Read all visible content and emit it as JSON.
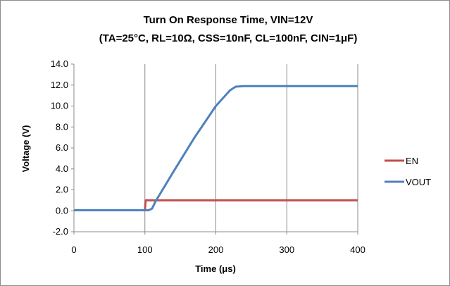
{
  "chart_data": {
    "type": "line",
    "title_line1": "Turn On Response Time, VIN=12V",
    "title_line2": "(TA=25°C, RL=10Ω, CSS=10nF, CL=100nF, CIN=1μF)",
    "xlabel": "Time (μs)",
    "ylabel": "Voltage (V)",
    "xlim": [
      0,
      400
    ],
    "ylim": [
      -2,
      14
    ],
    "x_ticks": [
      0,
      100,
      200,
      300,
      400
    ],
    "y_ticks": [
      -2,
      0,
      2,
      4,
      6,
      8,
      10,
      12,
      14
    ],
    "y_tick_labels": [
      "-2.0",
      "0.0",
      "2.0",
      "4.0",
      "6.0",
      "8.0",
      "10.0",
      "12.0",
      "14.0"
    ],
    "grid": "vertical",
    "legend_position": "right",
    "series": [
      {
        "name": "EN",
        "color": "#c0504d",
        "points": [
          [
            0,
            0.05
          ],
          [
            100,
            0.05
          ],
          [
            101,
            1.0
          ],
          [
            400,
            1.0
          ]
        ]
      },
      {
        "name": "VOUT",
        "color": "#4f81bd",
        "points": [
          [
            0,
            0.05
          ],
          [
            105,
            0.05
          ],
          [
            110,
            0.2
          ],
          [
            115,
            0.9
          ],
          [
            140,
            3.7
          ],
          [
            170,
            7.0
          ],
          [
            200,
            10.0
          ],
          [
            220,
            11.5
          ],
          [
            228,
            11.85
          ],
          [
            240,
            11.9
          ],
          [
            300,
            11.9
          ],
          [
            400,
            11.9
          ]
        ]
      }
    ]
  }
}
